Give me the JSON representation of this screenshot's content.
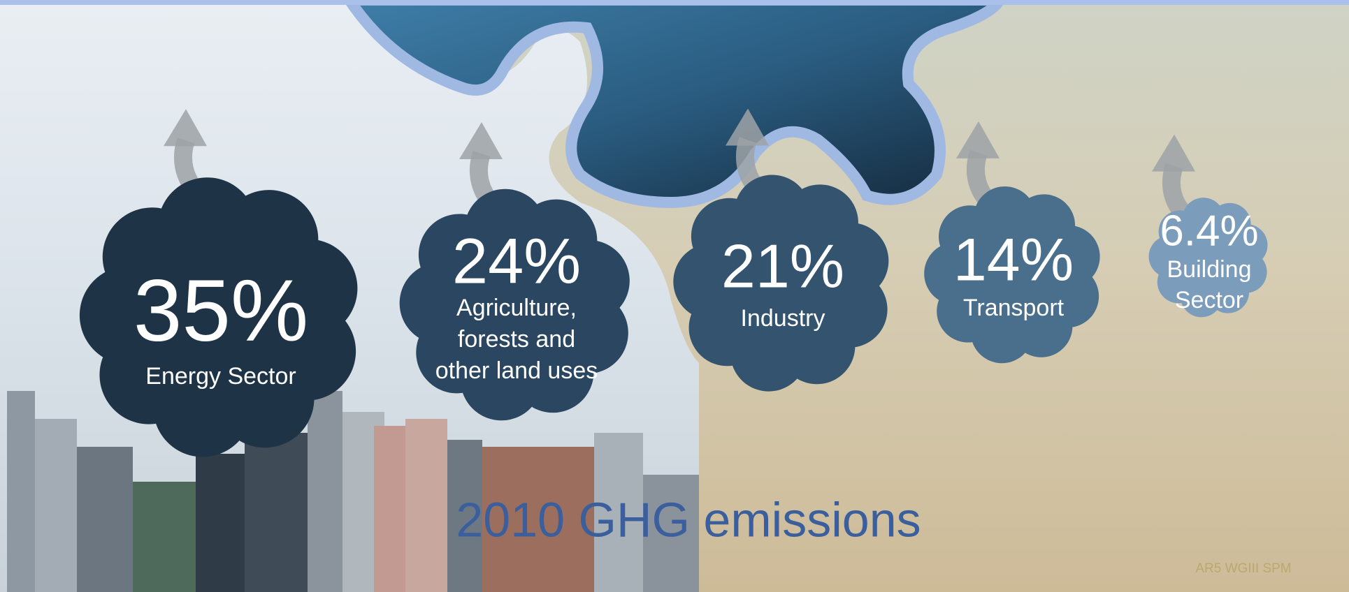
{
  "chart_data": {
    "type": "bubble",
    "title": "2010 GHG emissions",
    "source": "AR5 WGIII SPM",
    "categories": [
      [
        "Energy Sector"
      ],
      [
        "Agriculture,",
        "forests and",
        "other land uses"
      ],
      [
        "Industry"
      ],
      [
        "Transport"
      ],
      [
        "Building",
        "Sector"
      ]
    ],
    "values": [
      35,
      24,
      21,
      14,
      6.4
    ],
    "value_labels": [
      "35%",
      "24%",
      "21%",
      "14%",
      "6.4%"
    ],
    "colors": [
      "#1f3347",
      "#2a4660",
      "#34536e",
      "#4a6f8c",
      "#7b9dbb"
    ],
    "title_color": "#3b5f9c",
    "source_color": "#b9a96e"
  }
}
